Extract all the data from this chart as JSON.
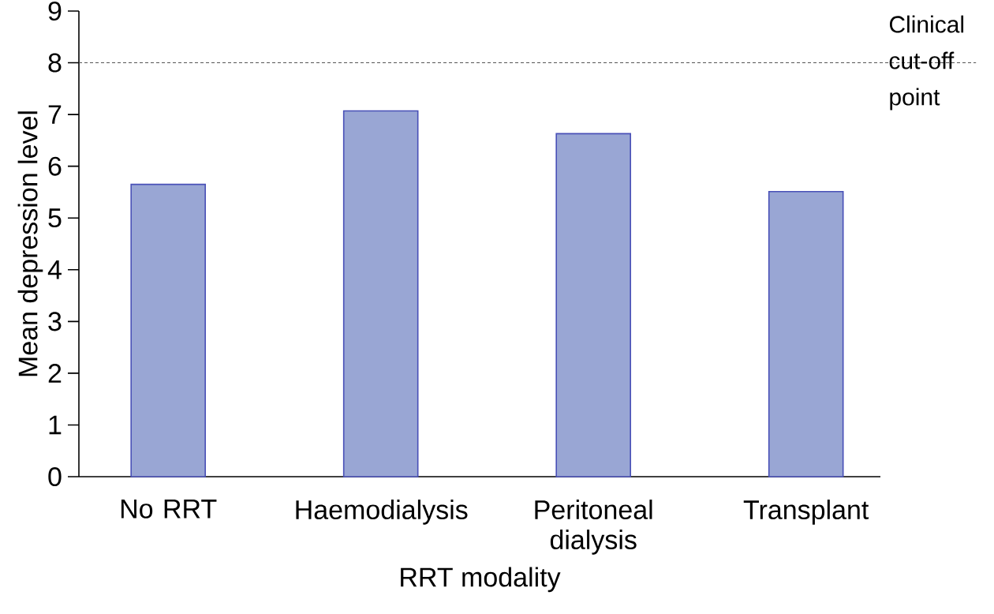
{
  "chart_data": {
    "type": "bar",
    "xlabel": "RRT modality",
    "ylabel": "Mean depression level",
    "categories": [
      "No RRT",
      "Haemodialysis",
      "Peritoneal dialysis",
      "Transplant"
    ],
    "values": [
      5.65,
      7.07,
      6.63,
      5.51
    ],
    "color": "#99a6d4",
    "ylim": [
      0,
      9
    ],
    "yticks": [
      0,
      1,
      2,
      3,
      4,
      5,
      6,
      7,
      8,
      9
    ],
    "grid": false,
    "ref_lines": [
      {
        "axis": "y",
        "value": 8,
        "label": "Clinical cut-off point",
        "color": "#555555",
        "line_style": "dashed"
      }
    ]
  }
}
